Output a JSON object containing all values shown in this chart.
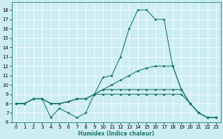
{
  "background_color": "#cceef2",
  "grid_color": "#ffffff",
  "line_color": "#1a7a6e",
  "x_label": "Humidex (Indice chaleur)",
  "xlim": [
    -0.5,
    23.5
  ],
  "ylim": [
    6,
    18.8
  ],
  "yticks": [
    6,
    7,
    8,
    9,
    10,
    11,
    12,
    13,
    14,
    15,
    16,
    17,
    18
  ],
  "xticks": [
    0,
    1,
    2,
    3,
    4,
    5,
    6,
    7,
    8,
    9,
    10,
    11,
    12,
    13,
    14,
    15,
    16,
    17,
    18,
    19,
    20,
    21,
    22,
    23
  ],
  "series": [
    {
      "x": [
        0,
        1,
        2,
        3,
        4,
        5,
        6,
        7,
        8,
        9,
        10,
        11,
        12,
        13,
        14,
        15,
        16,
        17,
        18,
        19,
        20,
        21,
        22,
        23
      ],
      "y": [
        8.0,
        8.0,
        8.5,
        8.5,
        6.5,
        7.5,
        7.0,
        6.5,
        7.0,
        9.0,
        10.8,
        11.0,
        13.0,
        16.0,
        18.0,
        18.0,
        17.0,
        17.0,
        12.0,
        9.5,
        8.0,
        7.0,
        6.5,
        6.5
      ]
    },
    {
      "x": [
        0,
        1,
        2,
        3,
        4,
        5,
        6,
        7,
        8,
        9,
        10,
        11,
        12,
        13,
        14,
        15,
        16,
        17,
        18,
        19,
        20,
        21,
        22,
        23
      ],
      "y": [
        8.0,
        8.0,
        8.5,
        8.5,
        8.0,
        8.0,
        8.2,
        8.5,
        8.5,
        9.0,
        9.5,
        10.0,
        10.5,
        11.0,
        11.5,
        11.8,
        12.0,
        12.0,
        12.0,
        9.5,
        8.0,
        7.0,
        6.5,
        6.5
      ]
    },
    {
      "x": [
        0,
        1,
        2,
        3,
        4,
        5,
        6,
        7,
        8,
        9,
        10,
        11,
        12,
        13,
        14,
        15,
        16,
        17,
        18,
        19,
        20,
        21,
        22,
        23
      ],
      "y": [
        8.0,
        8.0,
        8.5,
        8.5,
        8.0,
        8.0,
        8.2,
        8.5,
        8.5,
        9.0,
        9.5,
        9.5,
        9.5,
        9.5,
        9.5,
        9.5,
        9.5,
        9.5,
        9.5,
        9.5,
        8.0,
        7.0,
        6.5,
        6.5
      ]
    },
    {
      "x": [
        0,
        1,
        2,
        3,
        4,
        5,
        6,
        7,
        8,
        9,
        10,
        11,
        12,
        13,
        14,
        15,
        16,
        17,
        18,
        19,
        20,
        21,
        22,
        23
      ],
      "y": [
        8.0,
        8.0,
        8.5,
        8.5,
        8.0,
        8.0,
        8.2,
        8.5,
        8.5,
        9.0,
        9.0,
        9.0,
        9.0,
        9.0,
        9.0,
        9.0,
        9.0,
        9.0,
        9.0,
        9.0,
        8.0,
        7.0,
        6.5,
        6.5
      ]
    }
  ],
  "marker_size": 1.8,
  "linewidth": 0.8,
  "tick_fontsize": 5.0,
  "xlabel_fontsize": 5.5
}
